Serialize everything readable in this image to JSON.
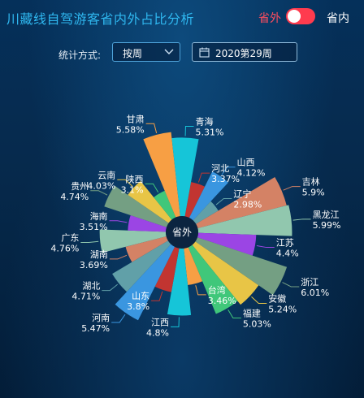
{
  "header": {
    "title": "川藏线自驾游客省内外占比分析",
    "toggle_off_label": "省外",
    "toggle_on_label": "省内"
  },
  "controls": {
    "stat_label": "统计方式:",
    "period_value": "按周",
    "week_value": "2020第29周"
  },
  "chart_data": {
    "type": "pie",
    "subtype": "nightingale-rose",
    "center_label": "省外",
    "slices": [
      {
        "name": "河北",
        "value": 3.37,
        "color": "#c23531"
      },
      {
        "name": "山西",
        "value": 4.12,
        "color": "#3a96e0"
      },
      {
        "name": "辽宁",
        "value": 2.98,
        "color": "#61a0a8"
      },
      {
        "name": "吉林",
        "value": 5.9,
        "color": "#d48265"
      },
      {
        "name": "黑龙江",
        "value": 5.99,
        "color": "#91c7ae"
      },
      {
        "name": "江苏",
        "value": 4.4,
        "color": "#9b45e4"
      },
      {
        "name": "浙江",
        "value": 6.01,
        "color": "#749f83"
      },
      {
        "name": "安徽",
        "value": 5.24,
        "color": "#e8c546"
      },
      {
        "name": "福建",
        "value": 5.03,
        "color": "#40c77a"
      },
      {
        "name": "台湾",
        "value": 3.46,
        "color": "#f79f44"
      },
      {
        "name": "江西",
        "value": 4.8,
        "color": "#16c5d8"
      },
      {
        "name": "山东",
        "value": 3.8,
        "color": "#c23531"
      },
      {
        "name": "河南",
        "value": 5.47,
        "color": "#3a96e0"
      },
      {
        "name": "湖北",
        "value": 4.71,
        "color": "#61a0a8"
      },
      {
        "name": "湖南",
        "value": 3.69,
        "color": "#d48265"
      },
      {
        "name": "广东",
        "value": 4.76,
        "color": "#91c7ae"
      },
      {
        "name": "海南",
        "value": 3.51,
        "color": "#9b45e4"
      },
      {
        "name": "贵州",
        "value": 4.74,
        "color": "#749f83"
      },
      {
        "name": "云南",
        "value": 4.03,
        "color": "#e8c546"
      },
      {
        "name": "陕西",
        "value": 3.1,
        "color": "#40c77a"
      },
      {
        "name": "甘肃",
        "value": 5.58,
        "color": "#f79f44"
      },
      {
        "name": "青海",
        "value": 5.31,
        "color": "#16c5d8"
      }
    ]
  }
}
